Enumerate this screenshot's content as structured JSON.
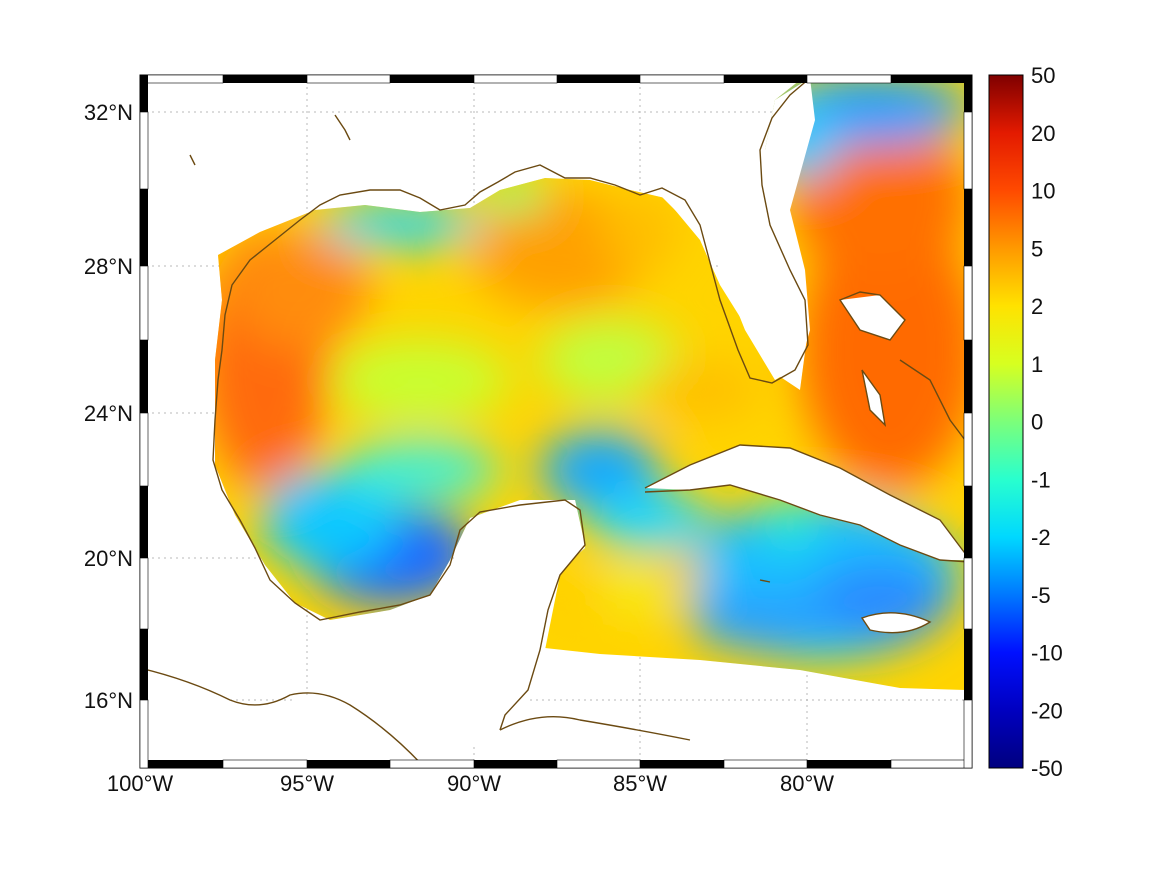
{
  "map": {
    "region": "Gulf of Mexico and western Caribbean",
    "projection": "Mercator (frame with alternating black/white border)",
    "extent": {
      "lon_min": -100.0,
      "lon_max": -75.0,
      "lat_min": 14.2,
      "lat_max": 33.0
    },
    "gridlines": "dotted gray",
    "coastline_color": "#6b4a12",
    "no_data_color": "#ffffff"
  },
  "axes": {
    "lat_ticks": [
      {
        "value": 32,
        "label": "32°N"
      },
      {
        "value": 28,
        "label": "28°N"
      },
      {
        "value": 24,
        "label": "24°N"
      },
      {
        "value": 20,
        "label": "20°N"
      },
      {
        "value": 16,
        "label": "16°N"
      }
    ],
    "lon_ticks": [
      {
        "value": -100,
        "label": "100°W"
      },
      {
        "value": -95,
        "label": "95°W"
      },
      {
        "value": -90,
        "label": "90°W"
      },
      {
        "value": -85,
        "label": "85°W"
      },
      {
        "value": -80,
        "label": "80°W"
      }
    ]
  },
  "colorbar": {
    "colormap": "jet",
    "scale": "nonlinear (symmetric log-like)",
    "orientation": "vertical",
    "placement": "right",
    "ticks": [
      "50",
      "20",
      "10",
      "5",
      "2",
      "1",
      "0",
      "-1",
      "-2",
      "-5",
      "-10",
      "-20",
      "-50"
    ],
    "stops": [
      {
        "value": "50",
        "color": "#7f0000"
      },
      {
        "value": "20",
        "color": "#e31a00"
      },
      {
        "value": "10",
        "color": "#ff4a00"
      },
      {
        "value": "5",
        "color": "#ff9900"
      },
      {
        "value": "2",
        "color": "#ffe200"
      },
      {
        "value": "1",
        "color": "#d7ff20"
      },
      {
        "value": "0",
        "color": "#7cff7a"
      },
      {
        "value": "-1",
        "color": "#29ffce"
      },
      {
        "value": "-2",
        "color": "#00d8ff"
      },
      {
        "value": "-5",
        "color": "#0078ff"
      },
      {
        "value": "-10",
        "color": "#0010ff"
      },
      {
        "value": "-20",
        "color": "#0000c0"
      },
      {
        "value": "-50",
        "color": "#00007f"
      }
    ]
  },
  "field_regions": [
    {
      "area": "western Gulf (Texas/Mexico shelf)",
      "value_range": "2 to 10",
      "color": "#ff7a10"
    },
    {
      "area": "north-central Gulf (south of Mississippi delta)",
      "value_range": "2 to 5",
      "color": "#ffb000"
    },
    {
      "area": "Bay of Campeche",
      "value_range": "-5 to -2",
      "color": "#1e8cff"
    },
    {
      "area": "northern Gulf near Louisiana coast",
      "value_range": "-2 to -1",
      "color": "#22d8ff"
    },
    {
      "area": "Atlantic east of Florida",
      "value_range": "5 to 10",
      "color": "#ff6a00"
    },
    {
      "area": "western Caribbean",
      "value_range": "-2 to 0",
      "color": "#10c8ff"
    },
    {
      "area": "off NE Florida / Georgia",
      "value_range": "-5 to -2",
      "color": "#2aa8ff"
    }
  ]
}
